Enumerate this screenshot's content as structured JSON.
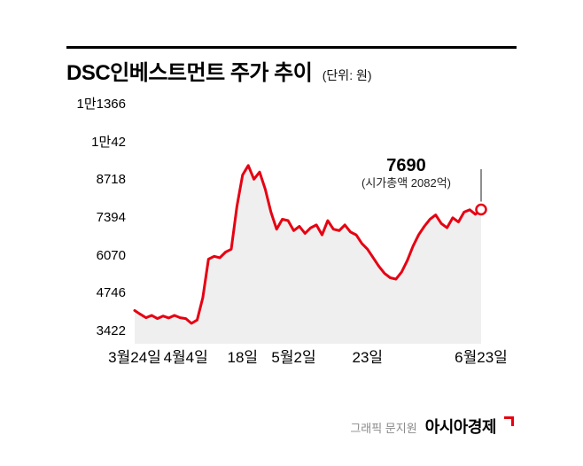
{
  "header": {
    "title": "DSC인베스트먼트 주가 추이",
    "unit": "(단위: 원)"
  },
  "annotation": {
    "price": "7690",
    "market_cap": "(시가총액 2082억)"
  },
  "footer": {
    "credit": "그래픽 문지원",
    "brand": "아시아경제"
  },
  "colors": {
    "line": "#e60012",
    "area_fill": "#efefef",
    "pointer": "#444444",
    "marker_fill": "#ffffff",
    "brand_mark": "#e60012"
  },
  "chart_data": {
    "type": "line",
    "title": "DSC인베스트먼트 주가 추이",
    "unit": "원",
    "series_name": "DSC인베스트먼트 주가",
    "ylim": [
      3422,
      11366
    ],
    "y_ticks": [
      3422,
      4746,
      6070,
      7394,
      8718,
      10042,
      11366
    ],
    "y_tick_labels": [
      "3422",
      "4746",
      "6070",
      "7394",
      "8718",
      "1만42",
      "1만1366"
    ],
    "x_tick_labels": [
      "3월24일",
      "4월4일",
      "18일",
      "5월2일",
      "23일",
      "6월23일"
    ],
    "x_tick_indices": [
      0,
      9,
      19,
      28,
      41,
      61
    ],
    "values": [
      4150,
      4020,
      3900,
      3980,
      3870,
      3960,
      3890,
      3980,
      3900,
      3870,
      3700,
      3820,
      4600,
      5950,
      6050,
      6000,
      6200,
      6300,
      7800,
      8900,
      9230,
      8750,
      9000,
      8400,
      7600,
      7000,
      7350,
      7300,
      6950,
      7100,
      6850,
      7050,
      7150,
      6800,
      7300,
      7000,
      6950,
      7150,
      6900,
      6800,
      6500,
      6300,
      6000,
      5700,
      5450,
      5300,
      5250,
      5500,
      5900,
      6400,
      6800,
      7100,
      7350,
      7500,
      7200,
      7050,
      7400,
      7250,
      7600,
      7680,
      7520,
      7690
    ],
    "last_value": 7690,
    "last_value_note": "(시가총액 2082억)",
    "grid": false,
    "legend_position": "none",
    "area_fill": true
  }
}
